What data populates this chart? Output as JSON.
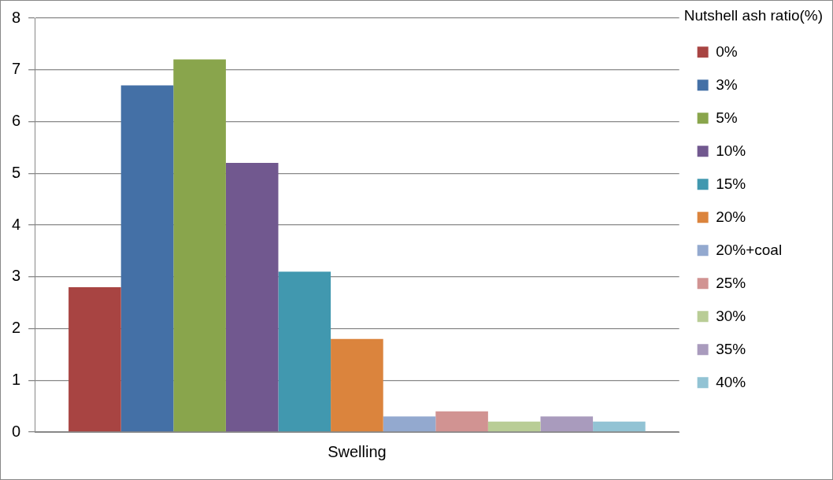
{
  "chart_data": {
    "type": "bar",
    "categories": [
      "Swelling"
    ],
    "legend_title": "Nutshell ash ratio(%)",
    "legend": "right",
    "grid": "y",
    "ylim": [
      0,
      8
    ],
    "yticks": [
      0,
      1,
      2,
      3,
      4,
      5,
      6,
      7,
      8
    ],
    "series": [
      {
        "name": "0%",
        "color": "#a84442",
        "values": [
          2.8
        ]
      },
      {
        "name": "3%",
        "color": "#4470a6",
        "values": [
          6.7
        ]
      },
      {
        "name": "5%",
        "color": "#89a54c",
        "values": [
          7.2
        ]
      },
      {
        "name": "10%",
        "color": "#71588f",
        "values": [
          5.2
        ]
      },
      {
        "name": "15%",
        "color": "#4198af",
        "values": [
          3.1
        ]
      },
      {
        "name": "20%",
        "color": "#db843d",
        "values": [
          1.8
        ]
      },
      {
        "name": "20%+coal",
        "color": "#93a9cf",
        "values": [
          0.3
        ]
      },
      {
        "name": "25%",
        "color": "#d19392",
        "values": [
          0.4
        ]
      },
      {
        "name": "30%",
        "color": "#b9cd96",
        "values": [
          0.2
        ]
      },
      {
        "name": "35%",
        "color": "#a99bbd",
        "values": [
          0.3
        ]
      },
      {
        "name": "40%",
        "color": "#92c3d4",
        "values": [
          0.2
        ]
      }
    ]
  }
}
